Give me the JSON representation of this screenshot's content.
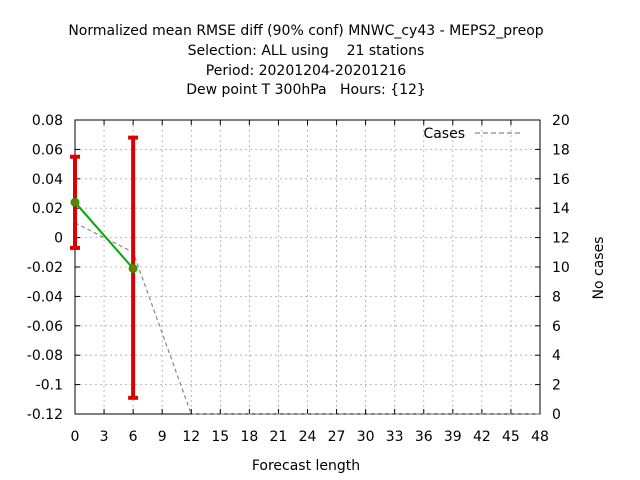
{
  "chart_data": {
    "type": "line",
    "title": [
      "Normalized mean RMSE diff (90% conf) MNWC_cy43 - MEPS2_preop",
      "Selection: ALL using    21 stations",
      "Period: 20201204-20201216",
      "Dew point T 300hPa   Hours: {12}"
    ],
    "xlabel": "Forecast length",
    "ylabel": "",
    "y2label": "No cases",
    "xlim": [
      0,
      48
    ],
    "ylim": [
      -0.12,
      0.08
    ],
    "y2lim": [
      0,
      20
    ],
    "xticks": [
      "0",
      "3",
      "6",
      "9",
      "12",
      "15",
      "18",
      "21",
      "24",
      "27",
      "30",
      "33",
      "36",
      "39",
      "42",
      "45",
      "48"
    ],
    "yticks": [
      "0.08",
      "0.06",
      "0.04",
      "0.02",
      "0",
      "-0.02",
      "-0.04",
      "-0.06",
      "-0.08",
      "-0.1",
      "-0.12"
    ],
    "y2ticks": [
      "20",
      "18",
      "16",
      "14",
      "12",
      "10",
      "8",
      "6",
      "4",
      "2",
      "0"
    ],
    "grid": true,
    "legend_position": "top-right",
    "legend": "Cases",
    "series": [
      {
        "type": "line-points-errorbars",
        "axis": "left",
        "color": "#00aa00",
        "marker_color": "#777700",
        "errorbar_color": "#dd0000",
        "x": [
          0,
          6
        ],
        "y": [
          0.024,
          -0.021
        ],
        "err_low": [
          -0.007,
          -0.109
        ],
        "err_high": [
          0.055,
          0.068
        ]
      },
      {
        "name": "Cases",
        "type": "dashed-line",
        "axis": "right",
        "color": "#888888",
        "x": [
          0,
          6,
          12,
          48
        ],
        "y": [
          13,
          11,
          0,
          0
        ]
      }
    ]
  }
}
